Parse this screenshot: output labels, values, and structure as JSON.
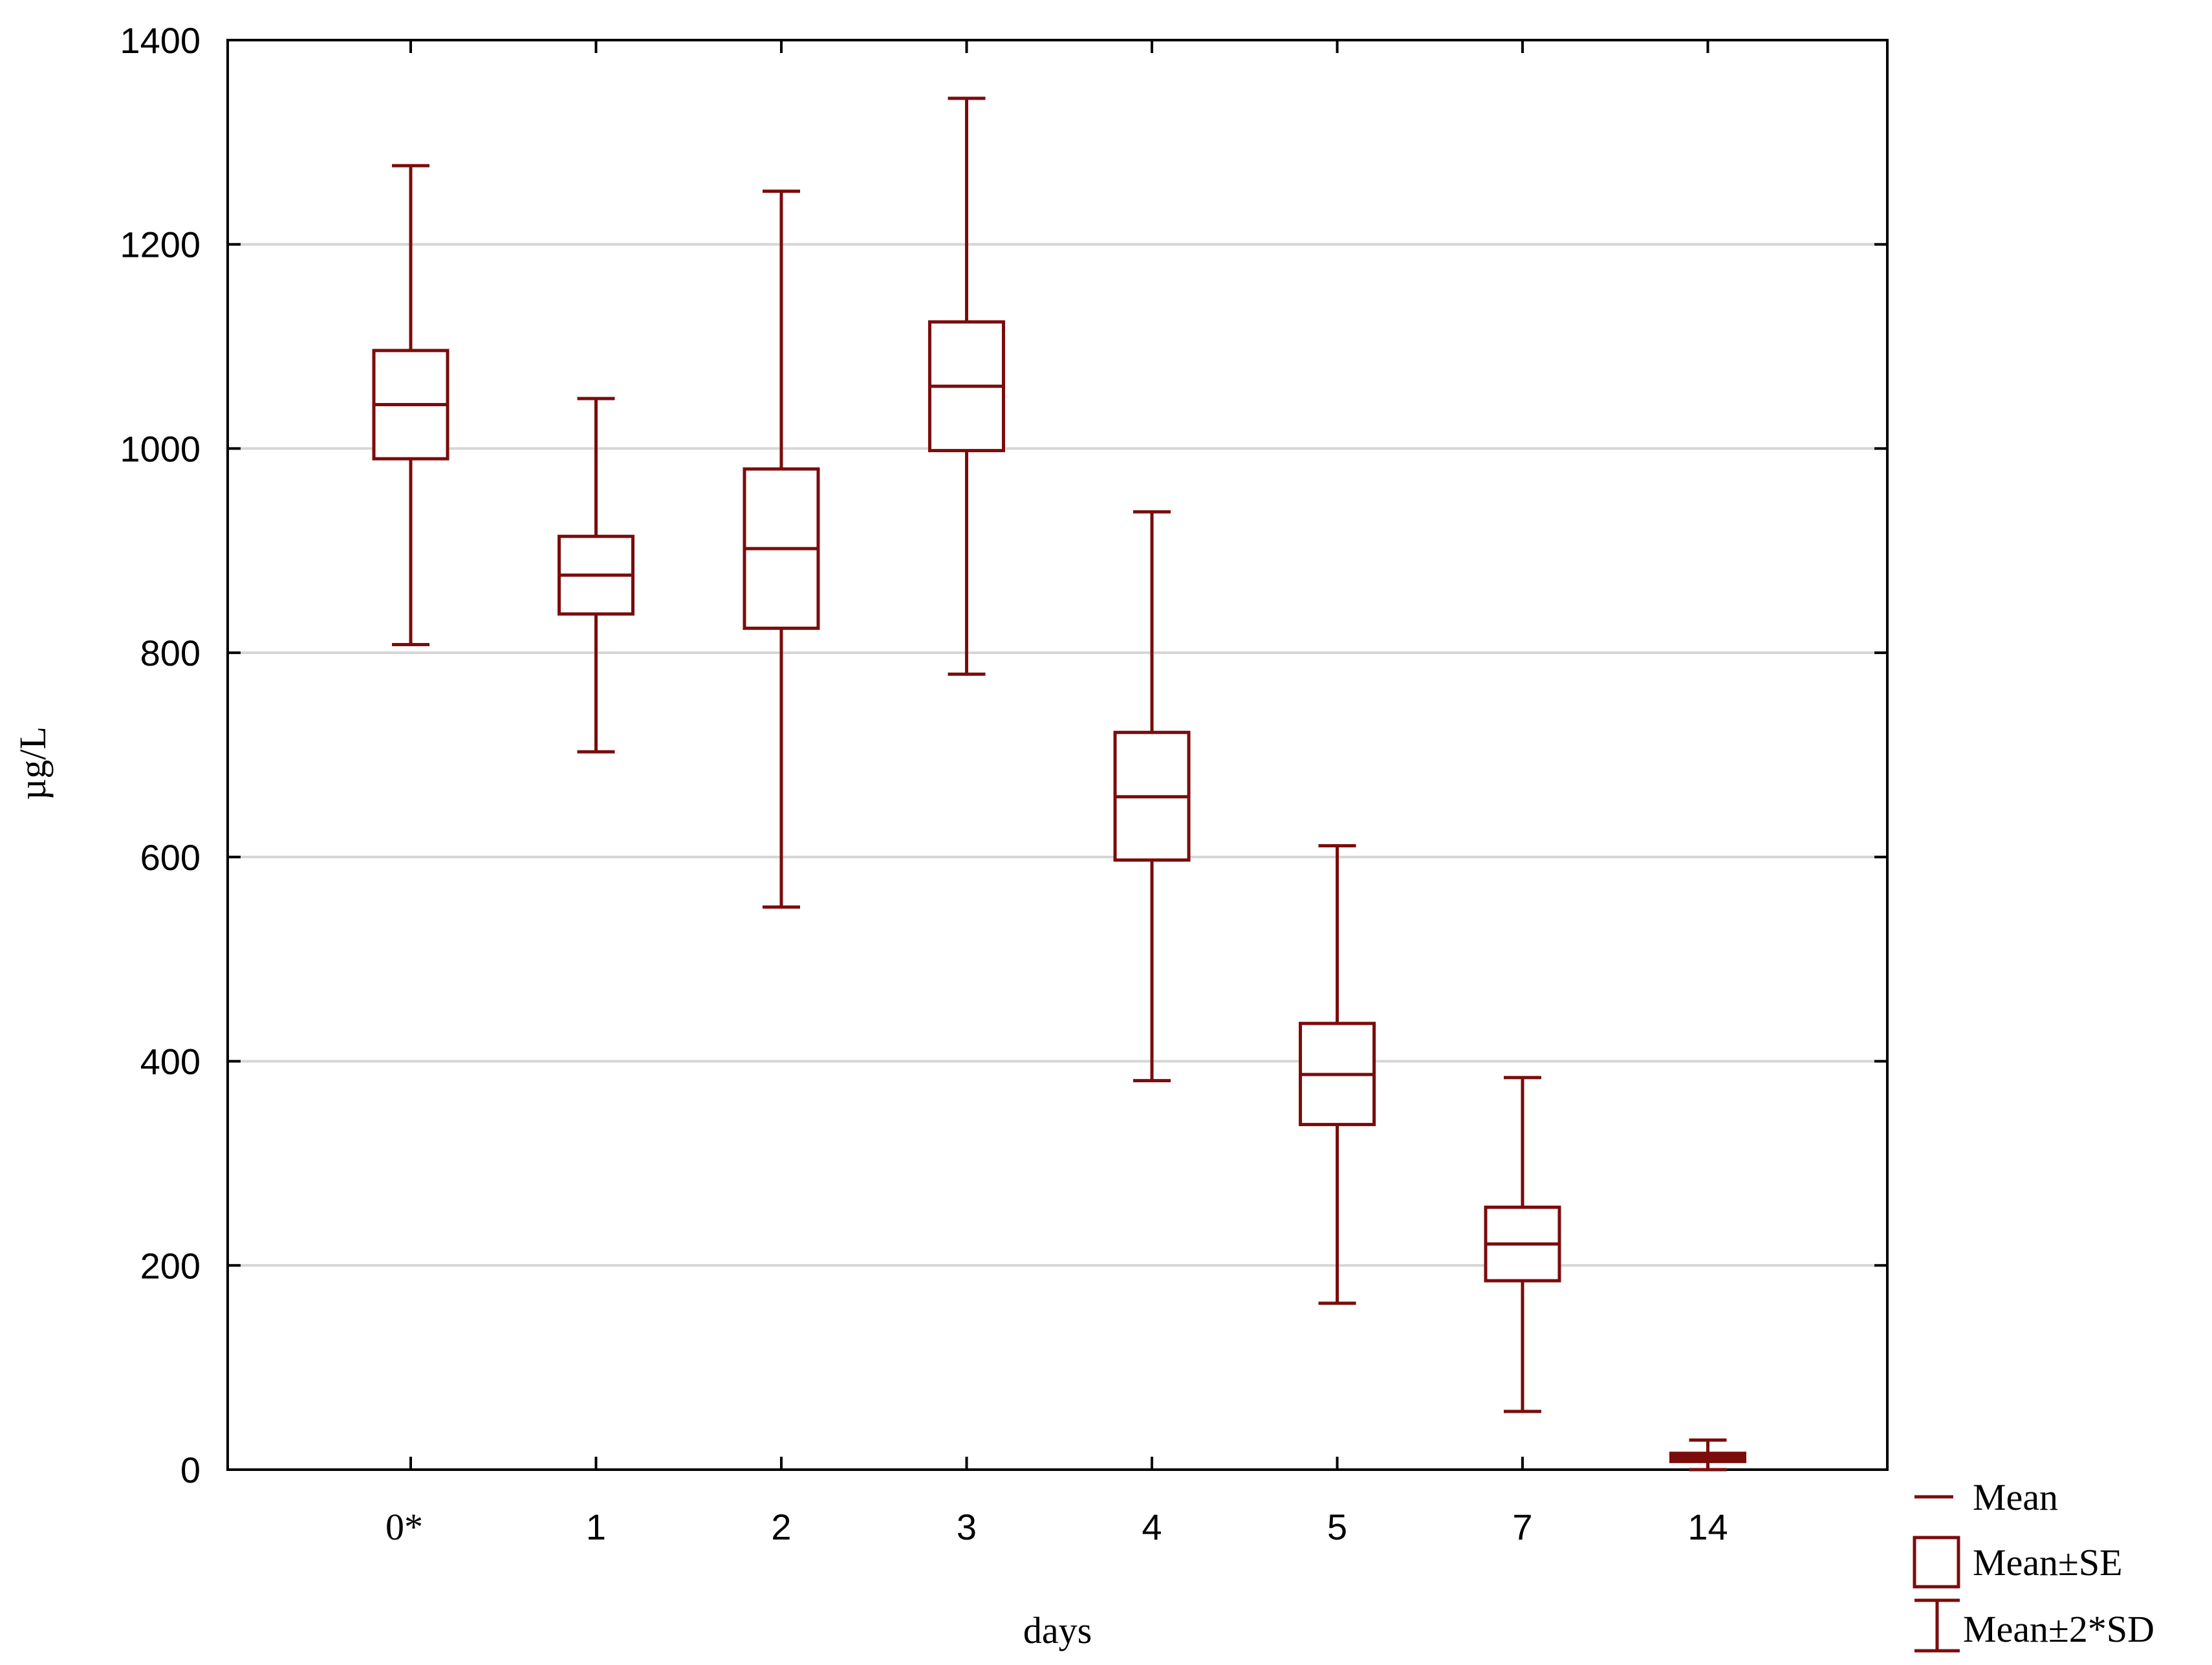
{
  "chart_data": {
    "type": "box",
    "title": "",
    "xlabel": "days",
    "ylabel": "µg/L",
    "ylim": [
      0,
      1400
    ],
    "yticks": [
      0,
      200,
      400,
      600,
      800,
      1000,
      1200,
      1400
    ],
    "categories": [
      "0*",
      "1",
      "2",
      "3",
      "4",
      "5",
      "7",
      "14"
    ],
    "mean": [
      1043,
      876,
      902,
      1061,
      659,
      387,
      221,
      12
    ],
    "se_low": [
      990,
      838,
      824,
      998,
      597,
      338,
      185,
      8
    ],
    "se_high": [
      1096,
      914,
      980,
      1124,
      722,
      437,
      257,
      16
    ],
    "sd2_low": [
      808,
      703,
      551,
      779,
      381,
      163,
      57,
      0
    ],
    "sd2_high": [
      1277,
      1049,
      1252,
      1343,
      938,
      611,
      384,
      29
    ],
    "grid": "horizontal",
    "color": "#7b0c0c",
    "legend": {
      "placement": "bottom-right-outside",
      "entries": [
        {
          "symbol": "line",
          "label": "Mean"
        },
        {
          "symbol": "box",
          "label": "Mean±SE"
        },
        {
          "symbol": "whisker",
          "label": "Mean±2*SD"
        }
      ]
    }
  }
}
